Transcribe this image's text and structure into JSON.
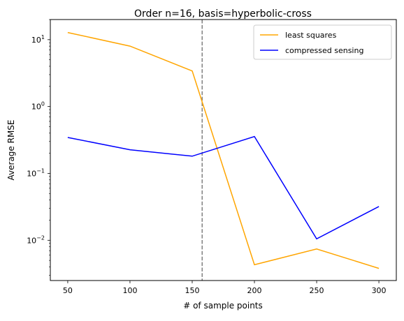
{
  "chart_data": {
    "type": "line",
    "title": "Order n=16, basis=hyperbolic-cross",
    "xlabel": "# of sample points",
    "ylabel": "Average RMSE",
    "x": [
      50,
      100,
      150,
      200,
      250,
      300
    ],
    "xticks": [
      50,
      100,
      150,
      200,
      250,
      300
    ],
    "xlim": [
      36,
      314
    ],
    "yscale": "log",
    "ylim": [
      0.0025,
      20
    ],
    "yticks": [
      {
        "value": 0.01,
        "base": "10",
        "exp": "−2"
      },
      {
        "value": 0.1,
        "base": "10",
        "exp": "−1"
      },
      {
        "value": 1,
        "base": "10",
        "exp": "0"
      },
      {
        "value": 10,
        "base": "10",
        "exp": "1"
      }
    ],
    "vline": {
      "x": 158,
      "color": "#808080",
      "style": "dashed"
    },
    "grid": false,
    "legend_position": "top-right",
    "series": [
      {
        "name": "least squares",
        "color": "#ffa500",
        "values": [
          12.8,
          8.0,
          3.4,
          0.0043,
          0.0074,
          0.0038
        ]
      },
      {
        "name": "compressed sensing",
        "color": "#0000ff",
        "values": [
          0.345,
          0.226,
          0.181,
          0.356,
          0.0105,
          0.032
        ]
      }
    ]
  }
}
